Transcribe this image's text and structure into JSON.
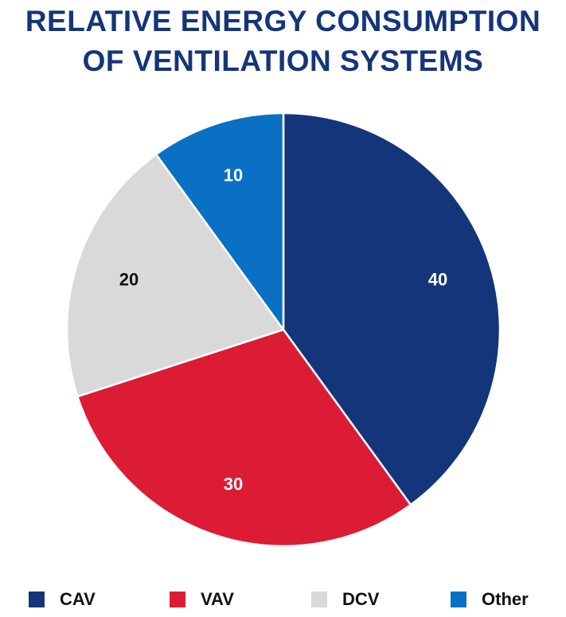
{
  "title_line1": "RELATIVE ENERGY CONSUMPTION",
  "title_line2": "OF VENTILATION SYSTEMS",
  "chart_data": {
    "type": "pie",
    "title": "RELATIVE ENERGY CONSUMPTION OF VENTILATION SYSTEMS",
    "categories": [
      "CAV",
      "VAV",
      "DCV",
      "Other"
    ],
    "values": [
      40,
      30,
      20,
      10
    ],
    "data_labels": [
      "40",
      "30",
      "20",
      "10"
    ],
    "colors": [
      "#14357a",
      "#dc1c35",
      "#d9d9d9",
      "#0a70c4"
    ],
    "label_colors": [
      "#ffffff",
      "#ffffff",
      "#111111",
      "#ffffff"
    ],
    "start_angle": "12 o'clock",
    "direction": "clockwise",
    "legend_position": "bottom"
  },
  "legend": [
    {
      "label": "CAV",
      "color": "#14357a"
    },
    {
      "label": "VAV",
      "color": "#dc1c35"
    },
    {
      "label": "DCV",
      "color": "#d9d9d9"
    },
    {
      "label": "Other",
      "color": "#0a70c4"
    }
  ]
}
